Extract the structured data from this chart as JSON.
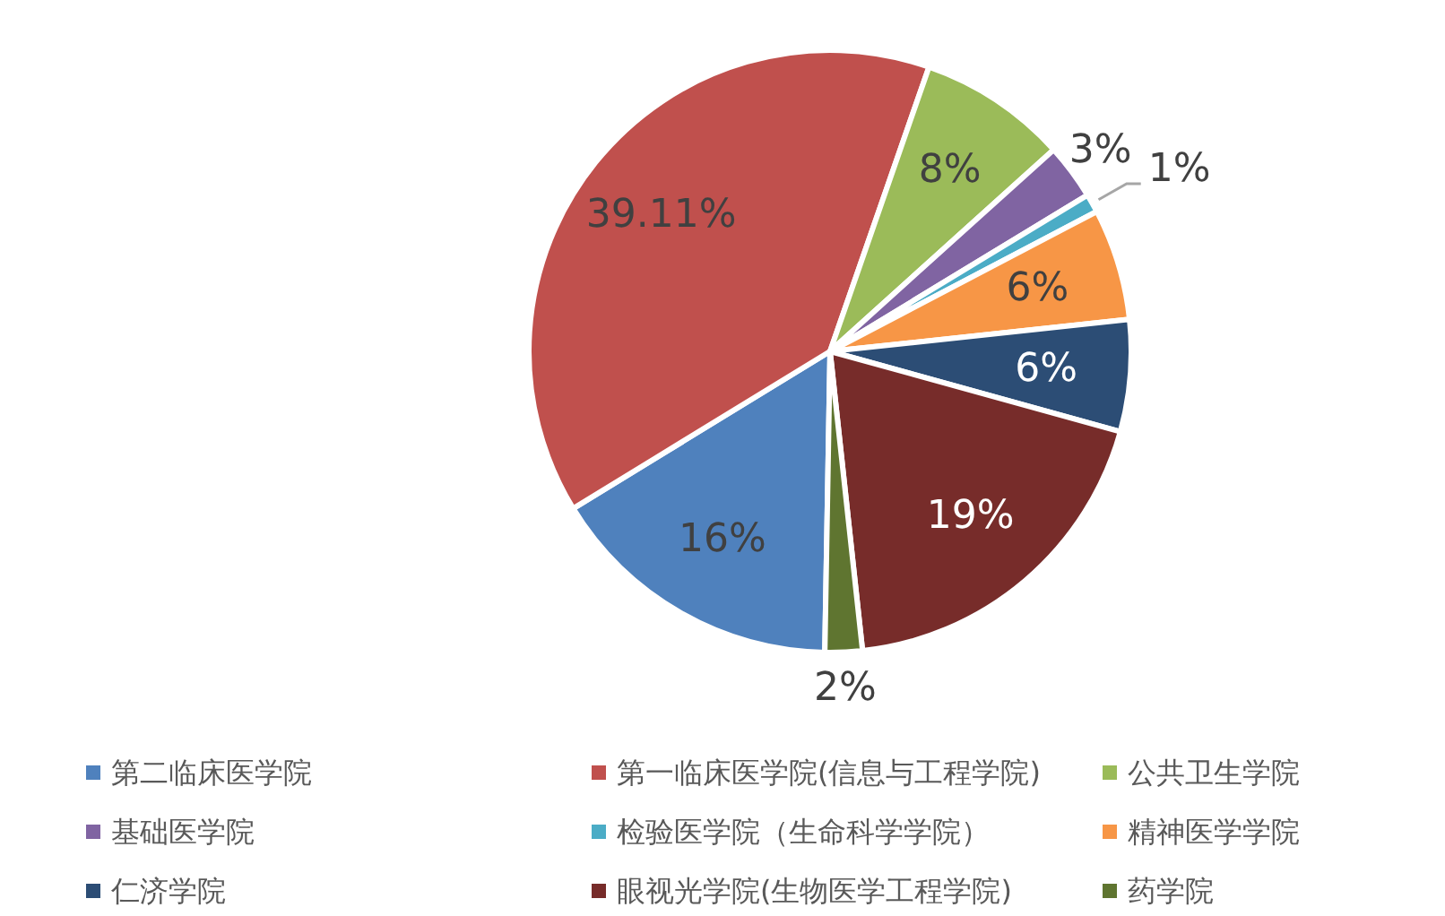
{
  "chart_data": {
    "type": "pie",
    "categories": [
      "第二临床医学院",
      "第一临床医学院(信息与工程学院)",
      "公共卫生学院",
      "基础医学院",
      "检验医学院（生命科学学院）",
      "精神医学学院",
      "仁济学院",
      "眼视光学院(生物医学工程学院)",
      "药学院"
    ],
    "values": [
      16,
      39.11,
      8,
      3,
      1,
      6,
      6,
      19,
      2
    ],
    "value_labels": [
      "16%",
      "39.11%",
      "8%",
      "3%",
      "1%",
      "6%",
      "6%",
      "19%",
      "2%"
    ],
    "colors": [
      "#4f81bd",
      "#c0504d",
      "#9bbb59",
      "#8064a2",
      "#4bacc6",
      "#f79646",
      "#2c4d75",
      "#772c2a",
      "#5f7530"
    ],
    "legend": "bottom"
  }
}
